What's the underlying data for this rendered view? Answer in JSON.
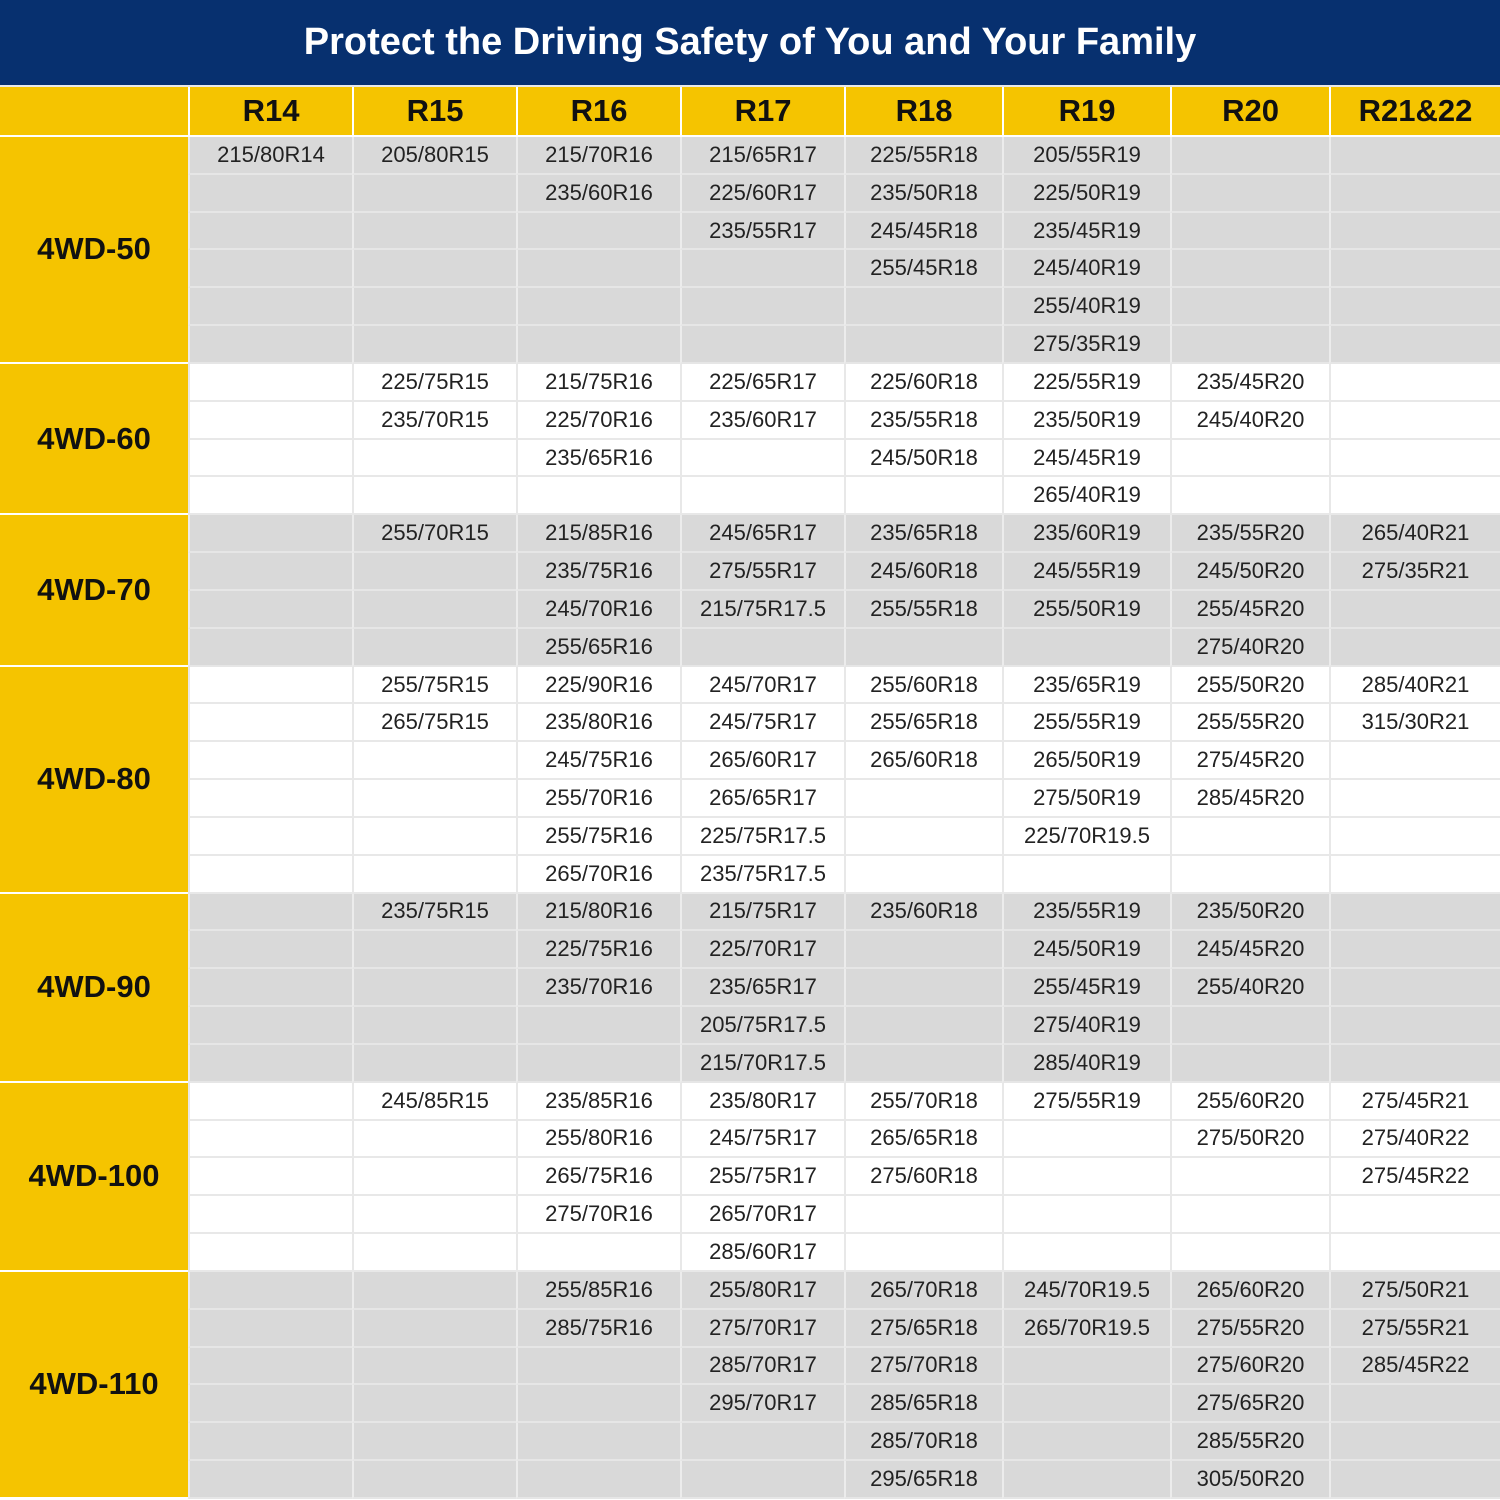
{
  "title": "Protect the Driving Safety of You and Your Family",
  "columns": [
    "R14",
    "R15",
    "R16",
    "R17",
    "R18",
    "R19",
    "R20",
    "R21&22"
  ],
  "colors": {
    "banner": "#07306f",
    "accent": "#f5c400",
    "row_gray": "#d9d9d9",
    "row_white": "#ffffff"
  },
  "groups": [
    {
      "label": "4WD-50",
      "cells": [
        [
          "215/80R14"
        ],
        [
          "205/80R15"
        ],
        [
          "215/70R16",
          "235/60R16"
        ],
        [
          "215/65R17",
          "225/60R17",
          "235/55R17"
        ],
        [
          "225/55R18",
          "235/50R18",
          "245/45R18",
          "255/45R18"
        ],
        [
          "205/55R19",
          "225/50R19",
          "235/45R19",
          "245/40R19",
          "255/40R19",
          "275/35R19"
        ],
        [],
        []
      ]
    },
    {
      "label": "4WD-60",
      "cells": [
        [],
        [
          "225/75R15",
          "235/70R15"
        ],
        [
          "215/75R16",
          "225/70R16",
          "235/65R16"
        ],
        [
          "225/65R17",
          "235/60R17"
        ],
        [
          "225/60R18",
          "235/55R18",
          "245/50R18"
        ],
        [
          "225/55R19",
          "235/50R19",
          "245/45R19",
          "265/40R19"
        ],
        [
          "235/45R20",
          "245/40R20"
        ],
        []
      ]
    },
    {
      "label": "4WD-70",
      "cells": [
        [],
        [
          "255/70R15"
        ],
        [
          "215/85R16",
          "235/75R16",
          "245/70R16",
          "255/65R16"
        ],
        [
          "245/65R17",
          "275/55R17",
          "215/75R17.5"
        ],
        [
          "235/65R18",
          "245/60R18",
          "255/55R18"
        ],
        [
          "235/60R19",
          "245/55R19",
          "255/50R19"
        ],
        [
          "235/55R20",
          "245/50R20",
          "255/45R20",
          "275/40R20"
        ],
        [
          "265/40R21",
          "275/35R21"
        ]
      ]
    },
    {
      "label": "4WD-80",
      "cells": [
        [],
        [
          "255/75R15",
          "265/75R15"
        ],
        [
          "225/90R16",
          "235/80R16",
          "245/75R16",
          "255/70R16",
          "255/75R16",
          "265/70R16"
        ],
        [
          "245/70R17",
          "245/75R17",
          "265/60R17",
          "265/65R17",
          "225/75R17.5",
          "235/75R17.5"
        ],
        [
          "255/60R18",
          "255/65R18",
          "265/60R18"
        ],
        [
          "235/65R19",
          "255/55R19",
          "265/50R19",
          "275/50R19",
          "225/70R19.5"
        ],
        [
          "255/50R20",
          "255/55R20",
          "275/45R20",
          "285/45R20"
        ],
        [
          "285/40R21",
          "315/30R21"
        ]
      ]
    },
    {
      "label": "4WD-90",
      "cells": [
        [],
        [
          "235/75R15"
        ],
        [
          "215/80R16",
          "225/75R16",
          "235/70R16"
        ],
        [
          "215/75R17",
          "225/70R17",
          "235/65R17",
          "205/75R17.5",
          "215/70R17.5"
        ],
        [
          "235/60R18"
        ],
        [
          "235/55R19",
          "245/50R19",
          "255/45R19",
          "275/40R19",
          "285/40R19"
        ],
        [
          "235/50R20",
          "245/45R20",
          "255/40R20"
        ],
        []
      ]
    },
    {
      "label": "4WD-100",
      "cells": [
        [],
        [
          "245/85R15"
        ],
        [
          "235/85R16",
          "255/80R16",
          "265/75R16",
          "275/70R16"
        ],
        [
          "235/80R17",
          "245/75R17",
          "255/75R17",
          "265/70R17",
          "285/60R17"
        ],
        [
          "255/70R18",
          "265/65R18",
          "275/60R18"
        ],
        [
          "275/55R19"
        ],
        [
          "255/60R20",
          "275/50R20"
        ],
        [
          "275/45R21",
          "275/40R22",
          "275/45R22"
        ]
      ]
    },
    {
      "label": "4WD-110",
      "cells": [
        [],
        [],
        [
          "255/85R16",
          "285/75R16"
        ],
        [
          "255/80R17",
          "275/70R17",
          "285/70R17",
          "295/70R17"
        ],
        [
          "265/70R18",
          "275/65R18",
          "275/70R18",
          "285/65R18",
          "285/70R18",
          "295/65R18"
        ],
        [
          "245/70R19.5",
          "265/70R19.5"
        ],
        [
          "265/60R20",
          "275/55R20",
          "275/60R20",
          "275/65R20",
          "285/55R20",
          "305/50R20"
        ],
        [
          "275/50R21",
          "275/55R21",
          "285/45R22"
        ]
      ]
    }
  ]
}
